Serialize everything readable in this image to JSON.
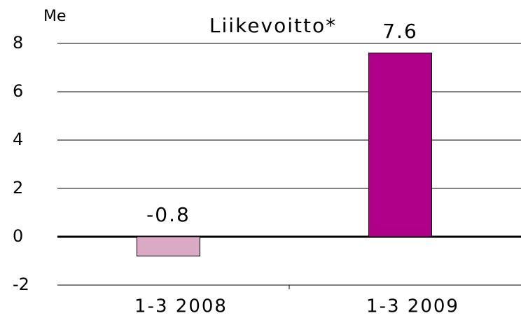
{
  "chart_data": {
    "type": "bar",
    "title": "Liikevoitto*",
    "y_label": "Me",
    "categories": [
      "1-3 2008",
      "1-3 2009"
    ],
    "values": [
      -0.8,
      7.6
    ],
    "colors": [
      "#d9a9c6",
      "#b0008a"
    ],
    "ylim": [
      -2,
      8
    ],
    "yticks": [
      -2,
      0,
      2,
      4,
      6,
      8
    ],
    "grid": true
  }
}
